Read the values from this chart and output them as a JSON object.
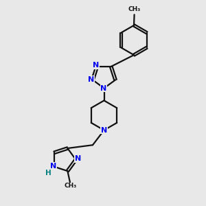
{
  "bg_color": "#e8e8e8",
  "bond_color": "#111111",
  "nitrogen_color": "#0000ee",
  "hydrogen_color": "#008080",
  "lw": 1.6,
  "figsize": [
    3.0,
    3.0
  ],
  "dpi": 100,
  "xlim": [
    0,
    10
  ],
  "ylim": [
    0,
    10
  ]
}
